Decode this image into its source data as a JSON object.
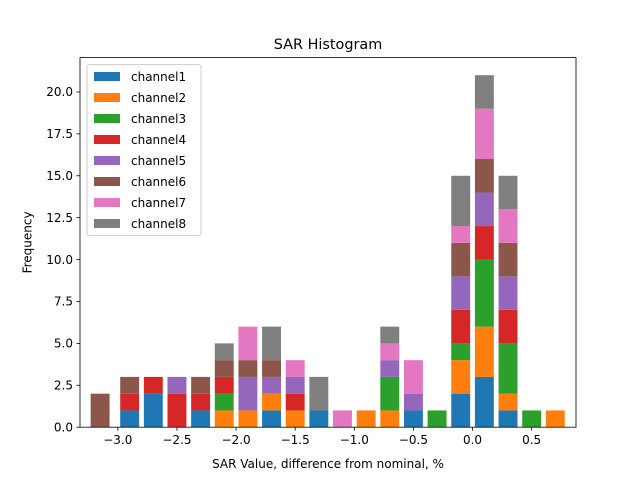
{
  "chart_data": {
    "type": "bar",
    "stacked": true,
    "title": "SAR Histogram",
    "xlabel": "SAR Value, difference from nominal, %",
    "ylabel": "Frequency",
    "xlim": [
      -3.32,
      0.875
    ],
    "ylim": [
      0,
      22.05
    ],
    "bin_width": 0.2,
    "x": [
      -3.15,
      -2.9,
      -2.7,
      -2.5,
      -2.3,
      -2.1,
      -1.9,
      -1.7,
      -1.5,
      -1.3,
      -1.1,
      -0.9,
      -0.7,
      -0.5,
      -0.3,
      -0.1,
      0.1,
      0.3,
      0.5,
      0.7
    ],
    "xticks": [
      "−3.0",
      "−2.5",
      "−2.0",
      "−1.5",
      "−1.0",
      "−0.5",
      "0.0",
      "0.5"
    ],
    "xtick_values": [
      -3.0,
      -2.5,
      -2.0,
      -1.5,
      -1.0,
      -0.5,
      0.0,
      0.5
    ],
    "yticks": [
      "0.0",
      "2.5",
      "5.0",
      "7.5",
      "10.0",
      "12.5",
      "15.0",
      "17.5",
      "20.0"
    ],
    "ytick_values": [
      0,
      2.5,
      5,
      7.5,
      10,
      12.5,
      15,
      17.5,
      20
    ],
    "legend_position": "upper-left",
    "series": [
      {
        "name": "channel1",
        "color": "#1f77b4",
        "values": [
          0,
          1,
          2,
          0,
          1,
          0,
          0,
          1,
          0,
          1,
          0,
          0,
          0,
          1,
          0,
          2,
          3,
          1,
          0,
          0
        ]
      },
      {
        "name": "channel2",
        "color": "#ff7f0e",
        "values": [
          0,
          0,
          0,
          0,
          0,
          1,
          1,
          1,
          1,
          0,
          0,
          1,
          1,
          0,
          0,
          2,
          3,
          1,
          0,
          1
        ]
      },
      {
        "name": "channel3",
        "color": "#2ca02c",
        "values": [
          0,
          0,
          0,
          0,
          0,
          1,
          0,
          0,
          0,
          0,
          0,
          0,
          2,
          0,
          1,
          1,
          4,
          3,
          1,
          0
        ]
      },
      {
        "name": "channel4",
        "color": "#d62728",
        "values": [
          0,
          1,
          1,
          2,
          1,
          1,
          0,
          0,
          1,
          0,
          0,
          0,
          0,
          0,
          0,
          2,
          2,
          2,
          0,
          0
        ]
      },
      {
        "name": "channel5",
        "color": "#9467bd",
        "values": [
          0,
          0,
          0,
          1,
          0,
          0,
          2,
          1,
          1,
          0,
          0,
          0,
          1,
          1,
          0,
          2,
          2,
          2,
          0,
          0
        ]
      },
      {
        "name": "channel6",
        "color": "#8c564b",
        "values": [
          2,
          1,
          0,
          0,
          1,
          1,
          1,
          1,
          0,
          0,
          0,
          0,
          0,
          0,
          0,
          2,
          2,
          2,
          0,
          0
        ]
      },
      {
        "name": "channel7",
        "color": "#e377c2",
        "values": [
          0,
          0,
          0,
          0,
          0,
          0,
          2,
          0,
          1,
          0,
          1,
          0,
          1,
          2,
          0,
          1,
          3,
          2,
          0,
          0
        ]
      },
      {
        "name": "channel8",
        "color": "#7f7f7f",
        "values": [
          0,
          0,
          0,
          0,
          0,
          1,
          0,
          2,
          0,
          2,
          0,
          0,
          1,
          0,
          0,
          3,
          2,
          2,
          0,
          0
        ]
      }
    ]
  }
}
